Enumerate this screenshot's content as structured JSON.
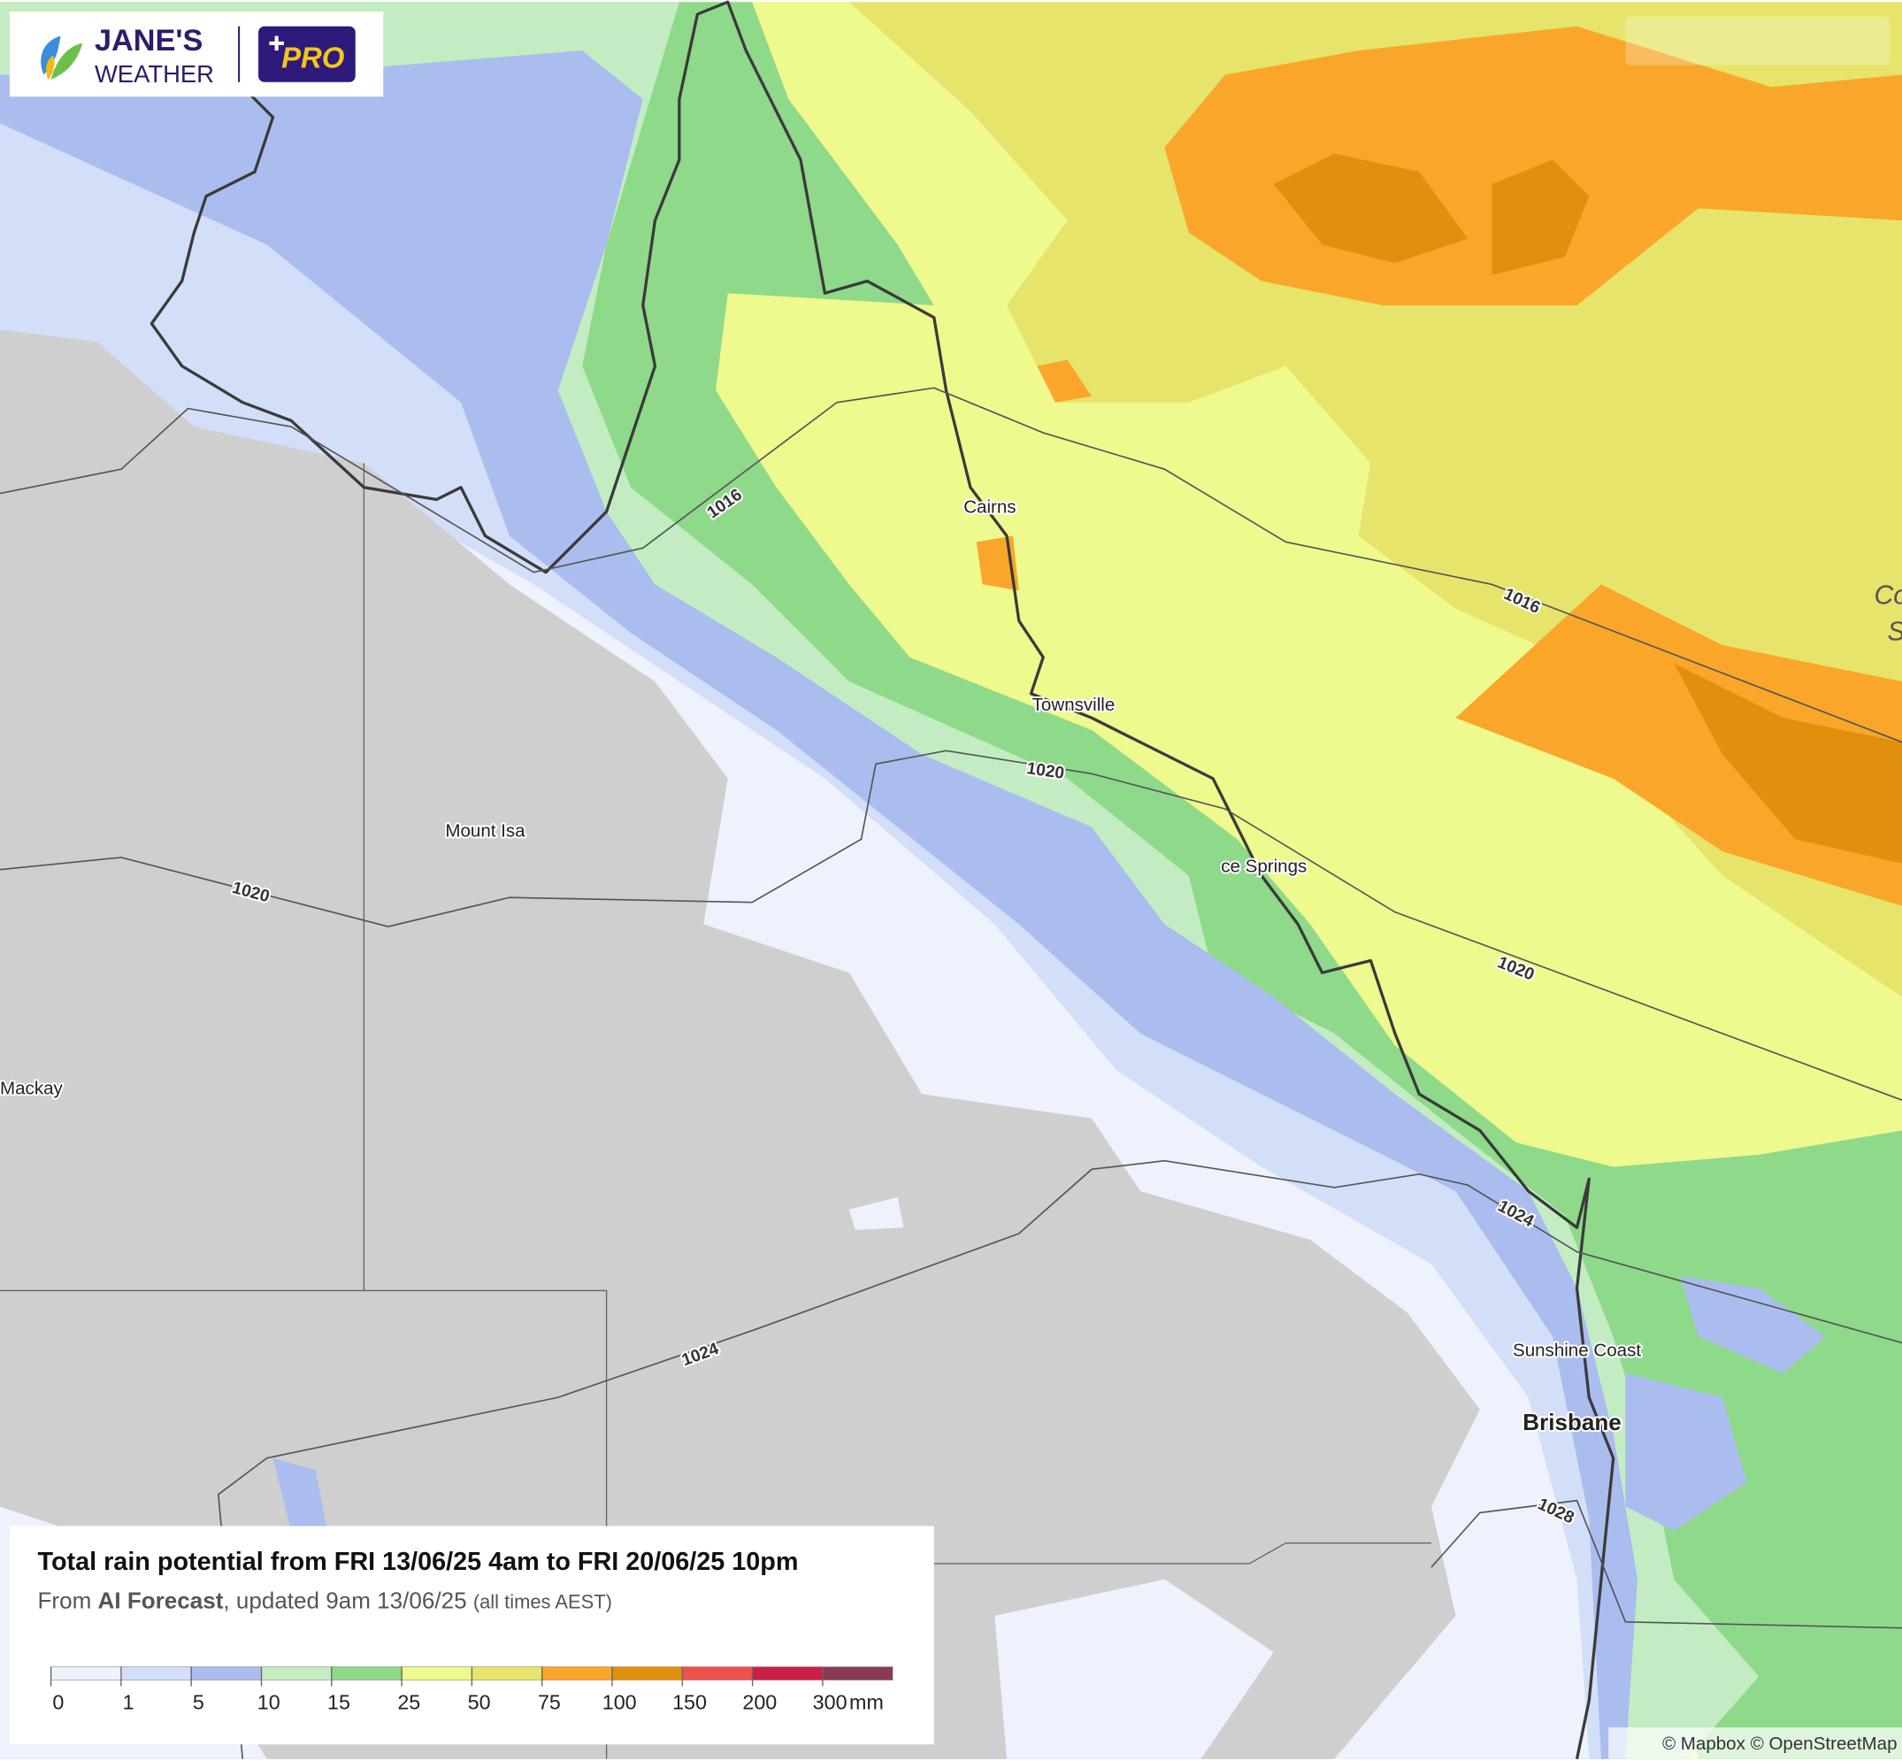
{
  "header": {
    "brand": "JANE'S",
    "brand_sub": "WEATHER",
    "badge": "PRO"
  },
  "map": {
    "places": [
      "Cairns",
      "Townsville",
      "Mount Isa",
      "Mackay",
      "ce Springs",
      "Sunshine Coast",
      "Brisbane"
    ],
    "sea_label": [
      "Co",
      "S"
    ],
    "isobars": [
      1016,
      1016,
      1020,
      1020,
      1020,
      1024,
      1024,
      1028
    ]
  },
  "legend": {
    "title": "Total rain potential from FRI 13/06/25 4am to FRI 20/06/25 10pm",
    "source_prefix": "From",
    "source": "AI Forecast",
    "updated": ", updated 9am 13/06/25",
    "note": "(all times AEST)",
    "ticks": [
      0,
      1,
      5,
      10,
      15,
      25,
      50,
      75,
      100,
      150,
      200,
      300
    ],
    "unit": "mm",
    "colors": [
      "#eef2fd",
      "#d3def8",
      "#aabdee",
      "#c3ecc3",
      "#8fd98a",
      "#eef98e",
      "#e6e46a",
      "#f9a62b",
      "#e0900c",
      "#f0504a",
      "#cc1f45",
      "#8a3a52"
    ]
  },
  "attribution": "© Mapbox © OpenStreetMap"
}
